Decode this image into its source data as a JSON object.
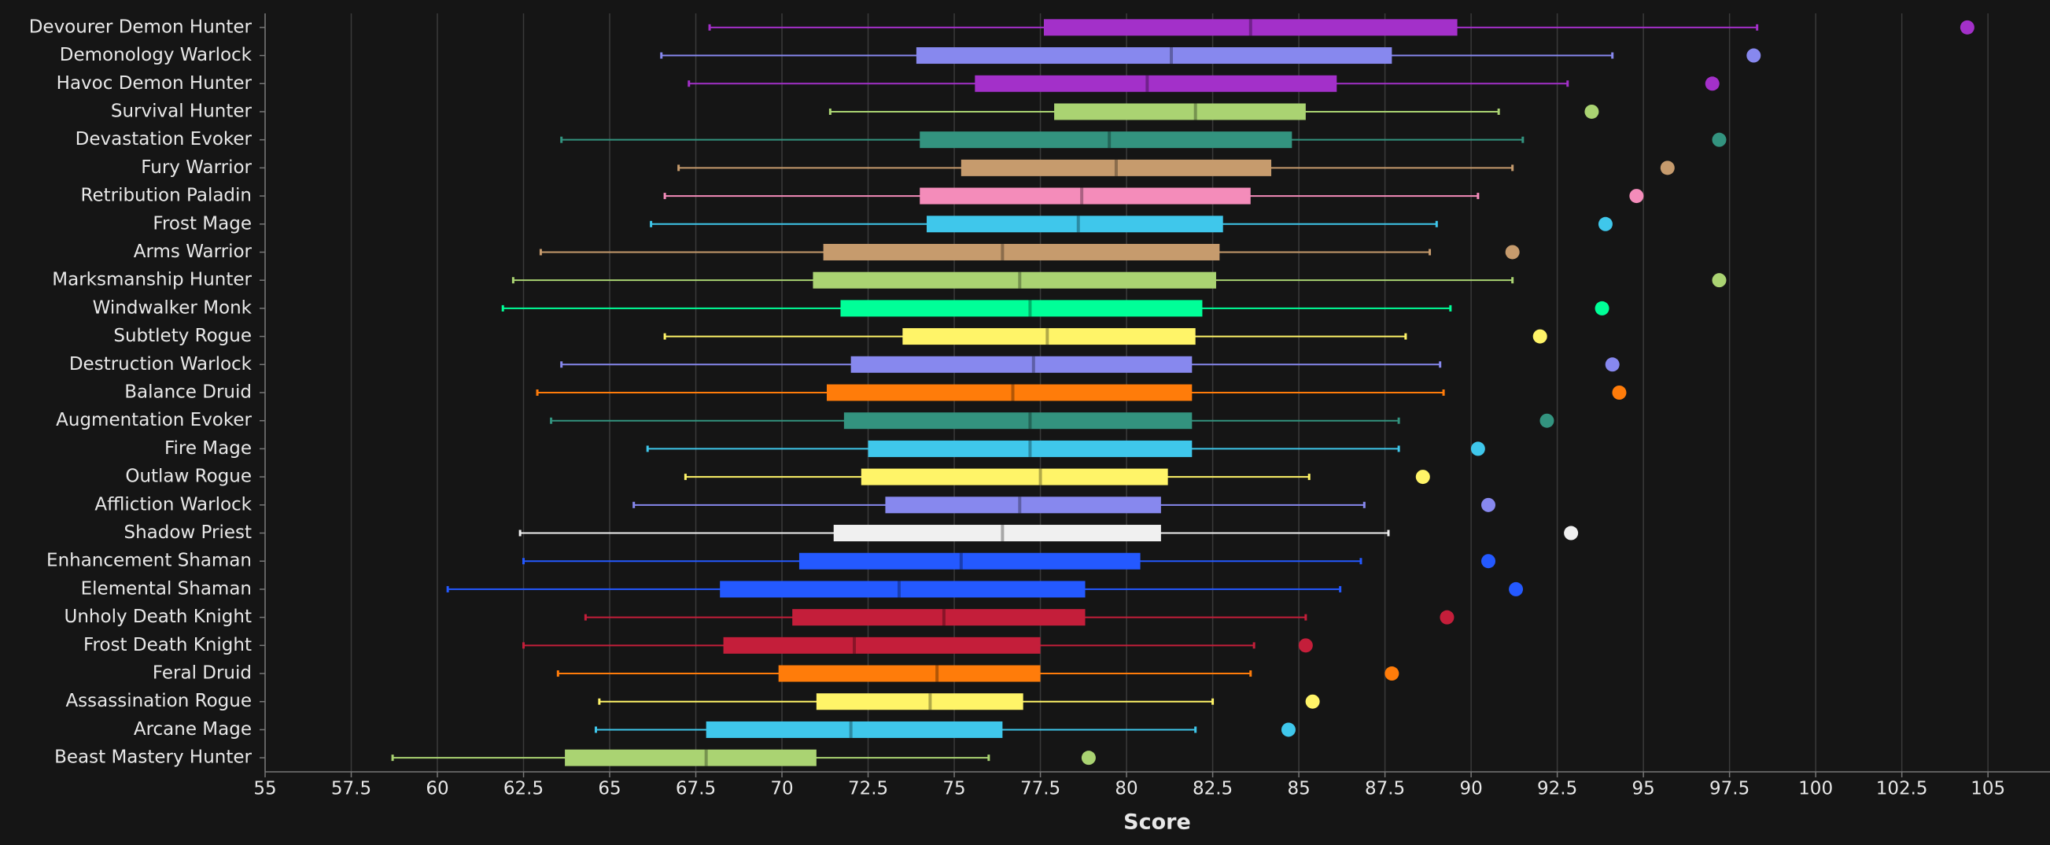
{
  "chart_data": {
    "type": "box",
    "x_label": "Score",
    "xlim": [
      55,
      106.8
    ],
    "xticks": [
      55,
      57.5,
      60,
      62.5,
      65,
      67.5,
      70,
      72.5,
      75,
      77.5,
      80,
      82.5,
      85,
      87.5,
      90,
      92.5,
      95,
      97.5,
      100,
      102.5,
      105
    ],
    "grid": true,
    "boxes": [
      {
        "label": "Devourer Demon Hunter",
        "color": "#a330c9",
        "whisker_low": 67.9,
        "q1": 77.6,
        "median": 83.6,
        "q3": 89.6,
        "whisker_high": 98.3,
        "max": 104.4
      },
      {
        "label": "Demonology Warlock",
        "color": "#8788ee",
        "whisker_low": 66.5,
        "q1": 73.9,
        "median": 81.3,
        "q3": 87.7,
        "whisker_high": 94.1,
        "max": 98.2
      },
      {
        "label": "Havoc Demon Hunter",
        "color": "#a330c9",
        "whisker_low": 67.3,
        "q1": 75.6,
        "median": 80.6,
        "q3": 86.1,
        "whisker_high": 92.8,
        "max": 97.0
      },
      {
        "label": "Survival Hunter",
        "color": "#aad372",
        "whisker_low": 71.4,
        "q1": 77.9,
        "median": 82.0,
        "q3": 85.2,
        "whisker_high": 90.8,
        "max": 93.5
      },
      {
        "label": "Devastation Evoker",
        "color": "#33937f",
        "whisker_low": 63.6,
        "q1": 74.0,
        "median": 79.5,
        "q3": 84.8,
        "whisker_high": 91.5,
        "max": 97.2
      },
      {
        "label": "Fury Warrior",
        "color": "#c69b6d",
        "whisker_low": 67.0,
        "q1": 75.2,
        "median": 79.7,
        "q3": 84.2,
        "whisker_high": 91.2,
        "max": 95.7
      },
      {
        "label": "Retribution Paladin",
        "color": "#f48cba",
        "whisker_low": 66.6,
        "q1": 74.0,
        "median": 78.7,
        "q3": 83.6,
        "whisker_high": 90.2,
        "max": 94.8
      },
      {
        "label": "Frost Mage",
        "color": "#3fc7eb",
        "whisker_low": 66.2,
        "q1": 74.2,
        "median": 78.6,
        "q3": 82.8,
        "whisker_high": 89.0,
        "max": 93.9
      },
      {
        "label": "Arms Warrior",
        "color": "#c69b6d",
        "whisker_low": 63.0,
        "q1": 71.2,
        "median": 76.4,
        "q3": 82.7,
        "whisker_high": 88.8,
        "max": 91.2
      },
      {
        "label": "Marksmanship Hunter",
        "color": "#aad372",
        "whisker_low": 62.2,
        "q1": 70.9,
        "median": 76.9,
        "q3": 82.6,
        "whisker_high": 91.2,
        "max": 97.2
      },
      {
        "label": "Windwalker Monk",
        "color": "#00ff98",
        "whisker_low": 61.9,
        "q1": 71.7,
        "median": 77.2,
        "q3": 82.2,
        "whisker_high": 89.4,
        "max": 93.8
      },
      {
        "label": "Subtlety Rogue",
        "color": "#fff468",
        "whisker_low": 66.6,
        "q1": 73.5,
        "median": 77.7,
        "q3": 82.0,
        "whisker_high": 88.1,
        "max": 92.0
      },
      {
        "label": "Destruction Warlock",
        "color": "#8788ee",
        "whisker_low": 63.6,
        "q1": 72.0,
        "median": 77.3,
        "q3": 81.9,
        "whisker_high": 89.1,
        "max": 94.1
      },
      {
        "label": "Balance Druid",
        "color": "#ff7c0a",
        "whisker_low": 62.9,
        "q1": 71.3,
        "median": 76.7,
        "q3": 81.9,
        "whisker_high": 89.2,
        "max": 94.3
      },
      {
        "label": "Augmentation Evoker",
        "color": "#33937f",
        "whisker_low": 63.3,
        "q1": 71.8,
        "median": 77.2,
        "q3": 81.9,
        "whisker_high": 87.9,
        "max": 92.2
      },
      {
        "label": "Fire Mage",
        "color": "#3fc7eb",
        "whisker_low": 66.1,
        "q1": 72.5,
        "median": 77.2,
        "q3": 81.9,
        "whisker_high": 87.9,
        "max": 90.2
      },
      {
        "label": "Outlaw Rogue",
        "color": "#fff468",
        "whisker_low": 67.2,
        "q1": 72.3,
        "median": 77.5,
        "q3": 81.2,
        "whisker_high": 85.3,
        "max": 88.6
      },
      {
        "label": "Affliction Warlock",
        "color": "#8788ee",
        "whisker_low": 65.7,
        "q1": 73.0,
        "median": 76.9,
        "q3": 81.0,
        "whisker_high": 86.9,
        "max": 90.5
      },
      {
        "label": "Shadow Priest",
        "color": "#f0f0f0",
        "whisker_low": 62.4,
        "q1": 71.5,
        "median": 76.4,
        "q3": 81.0,
        "whisker_high": 87.6,
        "max": 92.9
      },
      {
        "label": "Enhancement Shaman",
        "color": "#2459ff",
        "whisker_low": 62.5,
        "q1": 70.5,
        "median": 75.2,
        "q3": 80.4,
        "whisker_high": 86.8,
        "max": 90.5
      },
      {
        "label": "Elemental Shaman",
        "color": "#2459ff",
        "whisker_low": 60.3,
        "q1": 68.2,
        "median": 73.4,
        "q3": 78.8,
        "whisker_high": 86.2,
        "max": 91.3
      },
      {
        "label": "Unholy Death Knight",
        "color": "#c41e3a",
        "whisker_low": 64.3,
        "q1": 70.3,
        "median": 74.7,
        "q3": 78.8,
        "whisker_high": 85.2,
        "max": 89.3
      },
      {
        "label": "Frost Death Knight",
        "color": "#c41e3a",
        "whisker_low": 62.5,
        "q1": 68.3,
        "median": 72.1,
        "q3": 77.5,
        "whisker_high": 83.7,
        "max": 85.2
      },
      {
        "label": "Feral Druid",
        "color": "#ff7c0a",
        "whisker_low": 63.5,
        "q1": 69.9,
        "median": 74.5,
        "q3": 77.5,
        "whisker_high": 83.6,
        "max": 87.7
      },
      {
        "label": "Assassination Rogue",
        "color": "#fff468",
        "whisker_low": 64.7,
        "q1": 71.0,
        "median": 74.3,
        "q3": 77.0,
        "whisker_high": 82.5,
        "max": 85.4
      },
      {
        "label": "Arcane Mage",
        "color": "#3fc7eb",
        "whisker_low": 64.6,
        "q1": 67.8,
        "median": 72.0,
        "q3": 76.4,
        "whisker_high": 82.0,
        "max": 84.7
      },
      {
        "label": "Beast Mastery Hunter",
        "color": "#aad372",
        "whisker_low": 58.7,
        "q1": 63.7,
        "median": 67.8,
        "q3": 71.0,
        "whisker_high": 76.0,
        "max": 78.9
      }
    ]
  }
}
